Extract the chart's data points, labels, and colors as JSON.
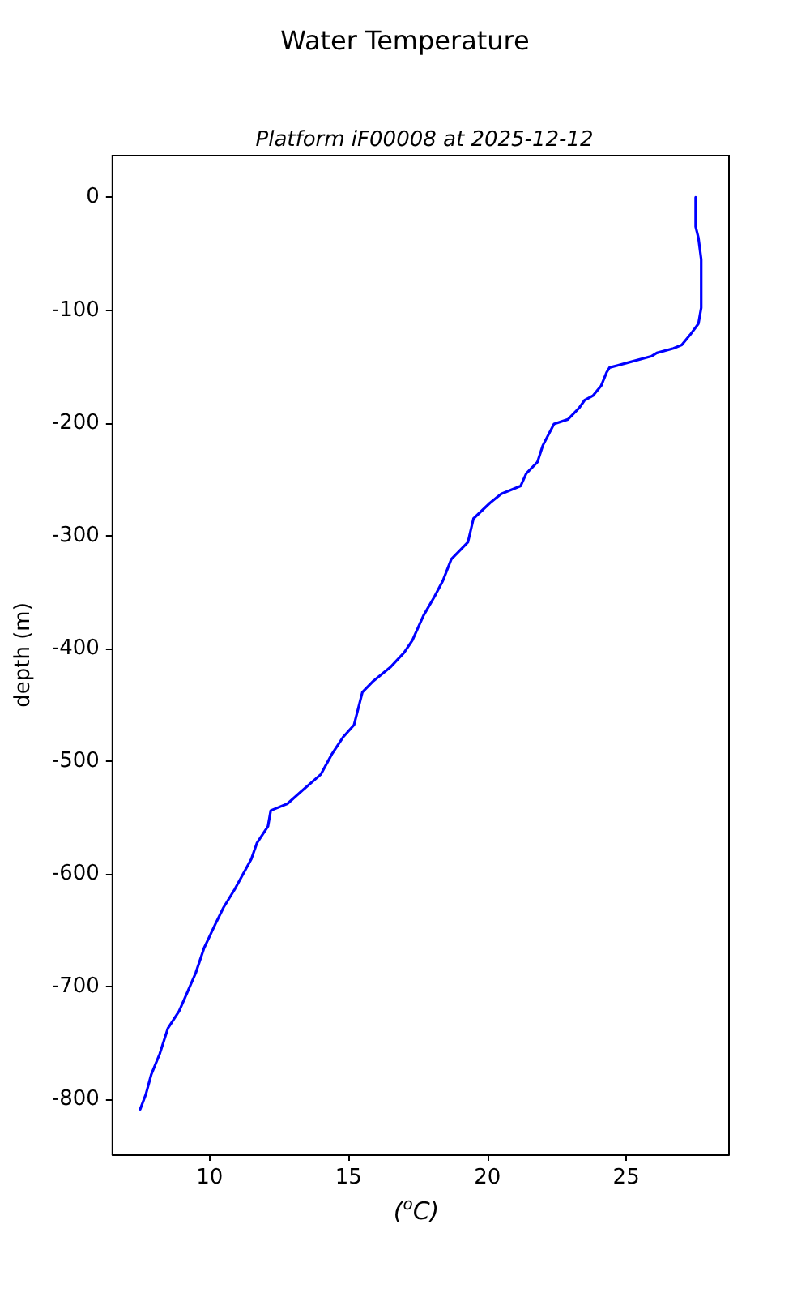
{
  "chart_data": {
    "type": "line",
    "title": "Water Temperature",
    "subtitle": "Platform iF00008 at 2025-12-12",
    "xlabel": "($^{o}$C)",
    "ylabel": "depth (m)",
    "series": [
      {
        "color": "#0000ff",
        "x": [
          27.5,
          27.5,
          27.6,
          27.7,
          27.7,
          27.6,
          27.3,
          27.0,
          26.7,
          26.1,
          25.9,
          25.0,
          24.4,
          24.3,
          24.1,
          23.8,
          23.5,
          23.3,
          22.9,
          22.4,
          22.0,
          21.8,
          21.4,
          21.2,
          20.5,
          20.1,
          19.5,
          19.3,
          18.7,
          18.4,
          18.1,
          17.7,
          17.3,
          17.0,
          16.5,
          15.9,
          15.5,
          15.2,
          14.8,
          14.4,
          14.0,
          13.3,
          12.8,
          12.2,
          12.1,
          11.7,
          11.5,
          10.9,
          10.5,
          10.2,
          9.8,
          9.5,
          9.2,
          8.9,
          8.5,
          8.2,
          7.9,
          7.7,
          7.5
        ],
        "values": [
          0,
          -26,
          -36,
          -55,
          -98,
          -112,
          -122,
          -131,
          -134,
          -138,
          -141,
          -147,
          -151,
          -155,
          -167,
          -176,
          -180,
          -187,
          -197,
          -201,
          -220,
          -235,
          -245,
          -256,
          -263,
          -271,
          -285,
          -306,
          -321,
          -340,
          -354,
          -371,
          -393,
          -404,
          -417,
          -429,
          -439,
          -468,
          -479,
          -494,
          -512,
          -527,
          -538,
          -544,
          -558,
          -573,
          -587,
          -614,
          -630,
          -645,
          -666,
          -688,
          -705,
          -722,
          -737,
          -760,
          -778,
          -796,
          -809
        ]
      }
    ],
    "xlim": [
      6.5,
      28.7
    ],
    "ylim": [
      -849,
      37
    ],
    "xticks": [
      10,
      15,
      20,
      25
    ],
    "yticks": [
      0,
      -100,
      -200,
      -300,
      -400,
      -500,
      -600,
      -700,
      -800
    ],
    "grid": false,
    "marker": "none",
    "line_style": "solid"
  }
}
